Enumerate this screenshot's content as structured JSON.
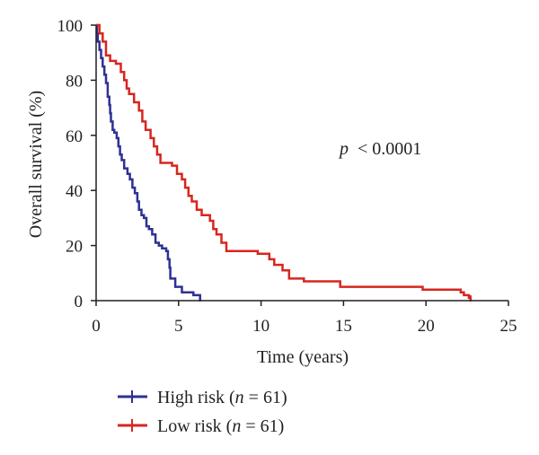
{
  "chart_data": {
    "type": "line",
    "subtype": "kaplan-meier",
    "xlabel": "Time (years)",
    "ylabel": "Overall survival (%)",
    "xlim": [
      0,
      25
    ],
    "ylim": [
      0,
      100
    ],
    "xticks": [
      0,
      5,
      10,
      15,
      20,
      25
    ],
    "yticks": [
      0,
      20,
      40,
      60,
      80,
      100
    ],
    "grid": false,
    "legend_position": "bottom-left",
    "annotation": {
      "symbol": "p",
      "relation": "< 0.0001"
    },
    "series": [
      {
        "name_prefix": "High risk (",
        "n_symbol": "n",
        "n_text": " = 61)",
        "color": "#2e3192",
        "points": [
          [
            0,
            100
          ],
          [
            0.05,
            97
          ],
          [
            0.1,
            94
          ],
          [
            0.2,
            91
          ],
          [
            0.3,
            88
          ],
          [
            0.4,
            85
          ],
          [
            0.5,
            82
          ],
          [
            0.6,
            79
          ],
          [
            0.7,
            74
          ],
          [
            0.8,
            71
          ],
          [
            0.85,
            68
          ],
          [
            0.9,
            65
          ],
          [
            1.0,
            62
          ],
          [
            1.1,
            61
          ],
          [
            1.25,
            59
          ],
          [
            1.35,
            56
          ],
          [
            1.45,
            53
          ],
          [
            1.55,
            51
          ],
          [
            1.7,
            48
          ],
          [
            1.9,
            46
          ],
          [
            2.05,
            44
          ],
          [
            2.2,
            41
          ],
          [
            2.35,
            39
          ],
          [
            2.5,
            36
          ],
          [
            2.6,
            33
          ],
          [
            2.75,
            31
          ],
          [
            2.9,
            30
          ],
          [
            3.05,
            27
          ],
          [
            3.2,
            26
          ],
          [
            3.4,
            24
          ],
          [
            3.6,
            21
          ],
          [
            3.8,
            20
          ],
          [
            4.0,
            19
          ],
          [
            4.25,
            18
          ],
          [
            4.35,
            15
          ],
          [
            4.45,
            12
          ],
          [
            4.5,
            8
          ],
          [
            4.8,
            5
          ],
          [
            5.2,
            3
          ],
          [
            5.9,
            2
          ],
          [
            6.3,
            0
          ]
        ]
      },
      {
        "name_prefix": "Low risk (",
        "n_symbol": "n",
        "n_text": " = 61)",
        "color": "#d7261e",
        "points": [
          [
            0,
            100
          ],
          [
            0.2,
            97
          ],
          [
            0.4,
            94
          ],
          [
            0.6,
            89
          ],
          [
            0.85,
            87
          ],
          [
            1.2,
            86
          ],
          [
            1.5,
            83
          ],
          [
            1.7,
            80
          ],
          [
            1.85,
            77
          ],
          [
            2.0,
            75
          ],
          [
            2.3,
            72
          ],
          [
            2.6,
            69
          ],
          [
            2.8,
            65
          ],
          [
            3.0,
            62
          ],
          [
            3.3,
            59
          ],
          [
            3.5,
            56
          ],
          [
            3.7,
            53
          ],
          [
            3.9,
            50
          ],
          [
            4.6,
            49
          ],
          [
            4.9,
            46
          ],
          [
            5.2,
            44
          ],
          [
            5.4,
            41
          ],
          [
            5.6,
            38
          ],
          [
            5.8,
            36
          ],
          [
            6.1,
            33
          ],
          [
            6.4,
            31
          ],
          [
            6.9,
            29
          ],
          [
            7.1,
            26
          ],
          [
            7.3,
            24
          ],
          [
            7.6,
            21
          ],
          [
            7.9,
            18
          ],
          [
            9.8,
            17
          ],
          [
            10.5,
            15
          ],
          [
            10.8,
            13
          ],
          [
            11.3,
            11
          ],
          [
            11.7,
            8
          ],
          [
            12.6,
            7
          ],
          [
            14.8,
            5
          ],
          [
            19.8,
            4
          ],
          [
            22.1,
            3
          ],
          [
            22.3,
            2
          ],
          [
            22.6,
            1
          ],
          [
            22.7,
            0
          ]
        ]
      }
    ]
  }
}
